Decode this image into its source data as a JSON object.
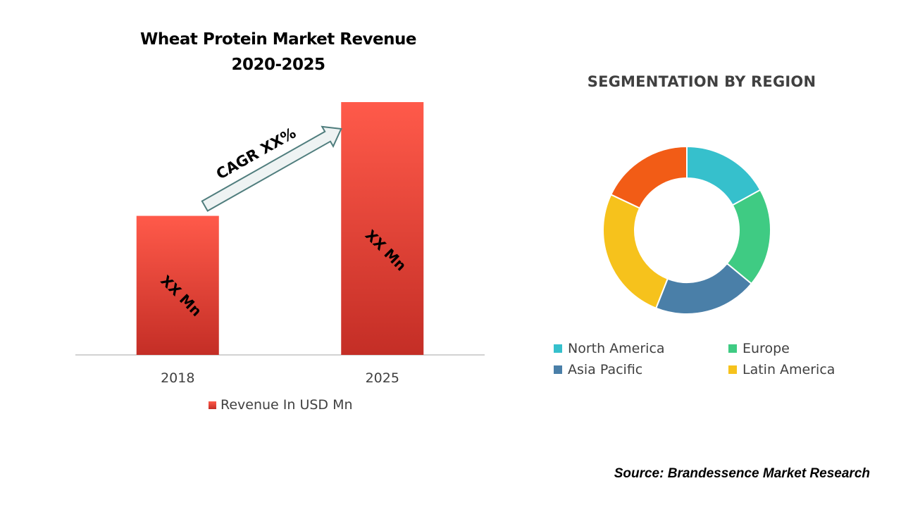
{
  "bar_title": "Wheat Protein Market Revenue 2020-2025",
  "donut_title": "SEGMENTATION  BY REGION",
  "source": "Source: Brandessence Market Research",
  "cagr_label": "CAGR XX%",
  "bar_legend": "Revenue In USD Mn",
  "colors": {
    "bar": "#e8382b",
    "north_america": "#36c0cc",
    "europe": "#3fcb83",
    "asia_pacific": "#4a7fa8",
    "latin_america": "#f6c21c",
    "other": "#f25c16"
  },
  "chart_data": [
    {
      "type": "bar",
      "title": "Wheat Protein Market Revenue 2020-2025",
      "categories": [
        "2018",
        "2025"
      ],
      "values": [
        55,
        100
      ],
      "value_labels": [
        "XX Mn",
        "XX Mn"
      ],
      "series": [
        {
          "name": "Revenue In USD Mn",
          "values": [
            55,
            100
          ]
        }
      ],
      "ylim": [
        0,
        100
      ],
      "grid": false,
      "legend": "bottom",
      "annotation": "CAGR XX%"
    },
    {
      "type": "pie",
      "title": "SEGMENTATION  BY REGION",
      "donut": true,
      "labels": [
        "North America",
        "Europe",
        "Asia Pacific",
        "Latin America",
        ""
      ],
      "values": [
        17,
        19,
        20,
        26,
        18
      ],
      "legend": "bottom"
    }
  ]
}
